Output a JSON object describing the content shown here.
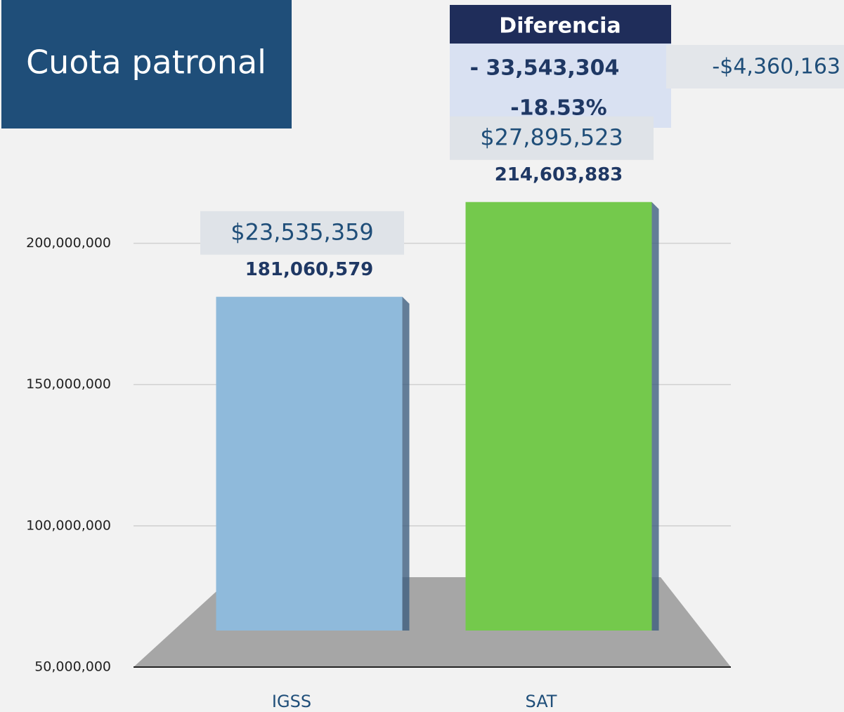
{
  "chart_data": {
    "type": "bar",
    "title": "Cuota patronal",
    "categories": [
      "IGSS",
      "SAT"
    ],
    "values": [
      181060579,
      214603883
    ],
    "value_labels": [
      "181,060,579",
      "214,603,883"
    ],
    "usd_labels": [
      "$23,535,359",
      "$27,895,523"
    ],
    "colors": [
      "#8fbadb",
      "#74c94c"
    ],
    "ylim": [
      50000000,
      220000000
    ],
    "yticks": [
      {
        "value": 50000000,
        "label": "50,000,000"
      },
      {
        "value": 100000000,
        "label": "100,000,000"
      },
      {
        "value": 150000000,
        "label": "150,000,000"
      },
      {
        "value": 200000000,
        "label": "200,000,000"
      }
    ],
    "grid": true,
    "difference": {
      "header": "Diferencia",
      "amount": "- 33,543,304",
      "percent": "-18.53%",
      "usd": "-$4,360,163"
    }
  }
}
